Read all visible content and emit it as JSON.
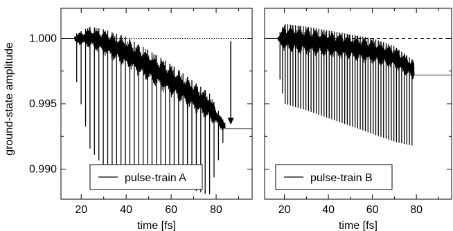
{
  "chart_data": [
    {
      "type": "line",
      "panel": "left",
      "xlabel": "time [fs]",
      "ylabel": "ground-state amplitude",
      "xlim": [
        11,
        96
      ],
      "ylim": [
        0.9877,
        1.0023
      ],
      "xticks": [
        20,
        40,
        60,
        80
      ],
      "yticks": [
        0.99,
        0.995,
        1.0
      ],
      "ytick_labels": [
        "0.990",
        "0.995",
        "1.000"
      ],
      "legend": "bottom-left",
      "grid": false,
      "reference_line": {
        "y": 1.0,
        "style": "dotted"
      },
      "annotation": {
        "type": "arrow",
        "x": 86.5,
        "y_from": 1.0,
        "y_to": 0.9934
      },
      "series": [
        {
          "name": "pulse-train A",
          "style": "solid",
          "color": "#000000",
          "start_time": 17,
          "end_time": 84,
          "pulse_count": 34,
          "envelope": {
            "time": [
              17,
              24,
              30,
              40,
              50,
              60,
              70,
              77,
              83,
              96
            ],
            "upper": [
              1.0003,
              1.0009,
              1.0007,
              1.0001,
              0.9991,
              0.998,
              0.9967,
              0.9958,
              0.9938,
              0.9931
            ],
            "lower": [
              0.9996,
              0.9992,
              0.9987,
              0.9977,
              0.9966,
              0.9955,
              0.9944,
              0.9936,
              0.9929,
              0.9931
            ],
            "spike_min": [
              0.9975,
              0.9915,
              0.9902,
              0.9895,
              0.9892,
              0.9889,
              0.9884,
              0.988,
              0.992,
              0.9931
            ]
          },
          "final_value": 0.9931
        }
      ]
    },
    {
      "type": "line",
      "panel": "right",
      "xlabel": "time [fs]",
      "ylabel": "",
      "xlim": [
        11,
        96
      ],
      "ylim": [
        0.9877,
        1.0023
      ],
      "xticks": [
        20,
        40,
        60,
        80
      ],
      "yticks": [
        0.99,
        0.995,
        1.0
      ],
      "legend": "bottom-left",
      "grid": false,
      "reference_line": {
        "y": 1.0,
        "style": "dashed"
      },
      "series": [
        {
          "name": "pulse-train B",
          "style": "solid",
          "color": "#000000",
          "start_time": 17,
          "end_time": 79,
          "pulse_count": 52,
          "envelope": {
            "time": [
              17,
              20,
              30,
              40,
              50,
              60,
              70,
              78,
              96
            ],
            "upper": [
              1.0002,
              1.0011,
              1.0009,
              1.0006,
              1.0003,
              1.0,
              0.9994,
              0.9984,
              0.9972
            ],
            "lower": [
              0.9997,
              0.9989,
              0.9987,
              0.9985,
              0.9983,
              0.998,
              0.9976,
              0.9968,
              0.9972
            ],
            "spike_min": [
              0.9978,
              0.995,
              0.9945,
              0.9939,
              0.9933,
              0.9927,
              0.9921,
              0.9918,
              0.9972
            ]
          },
          "final_value": 0.9972
        }
      ]
    }
  ]
}
